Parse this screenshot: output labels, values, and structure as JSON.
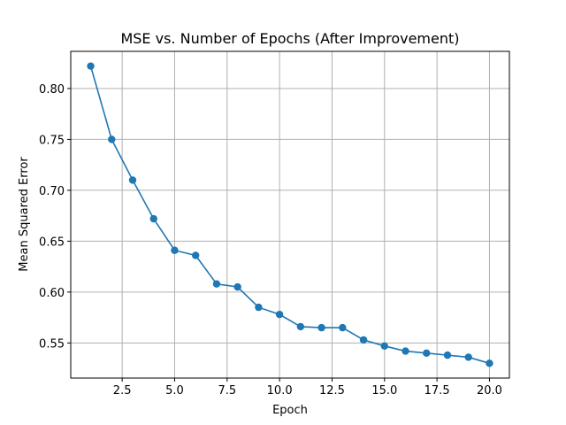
{
  "chart_data": {
    "type": "line",
    "title": "MSE vs. Number of Epochs (After Improvement)",
    "xlabel": "Epoch",
    "ylabel": "Mean Squared Error",
    "xlim": [
      0.05,
      20.95
    ],
    "ylim": [
      0.5155,
      0.8365
    ],
    "x_ticks": [
      2.5,
      5.0,
      7.5,
      10.0,
      12.5,
      15.0,
      17.5,
      20.0
    ],
    "x_tick_labels": [
      "2.5",
      "5.0",
      "7.5",
      "10.0",
      "12.5",
      "15.0",
      "17.5",
      "20.0"
    ],
    "y_ticks": [
      0.55,
      0.6,
      0.65,
      0.7,
      0.75,
      0.8
    ],
    "y_tick_labels": [
      "0.55",
      "0.60",
      "0.65",
      "0.70",
      "0.75",
      "0.80"
    ],
    "grid": true,
    "series": [
      {
        "color": "#1f77b4",
        "marker": "circle",
        "x": [
          1,
          2,
          3,
          4,
          5,
          6,
          7,
          8,
          9,
          10,
          11,
          12,
          13,
          14,
          15,
          16,
          17,
          18,
          19,
          20
        ],
        "y": [
          0.822,
          0.75,
          0.71,
          0.672,
          0.641,
          0.636,
          0.608,
          0.605,
          0.585,
          0.578,
          0.566,
          0.565,
          0.565,
          0.553,
          0.547,
          0.542,
          0.54,
          0.538,
          0.536,
          0.53
        ]
      }
    ]
  }
}
